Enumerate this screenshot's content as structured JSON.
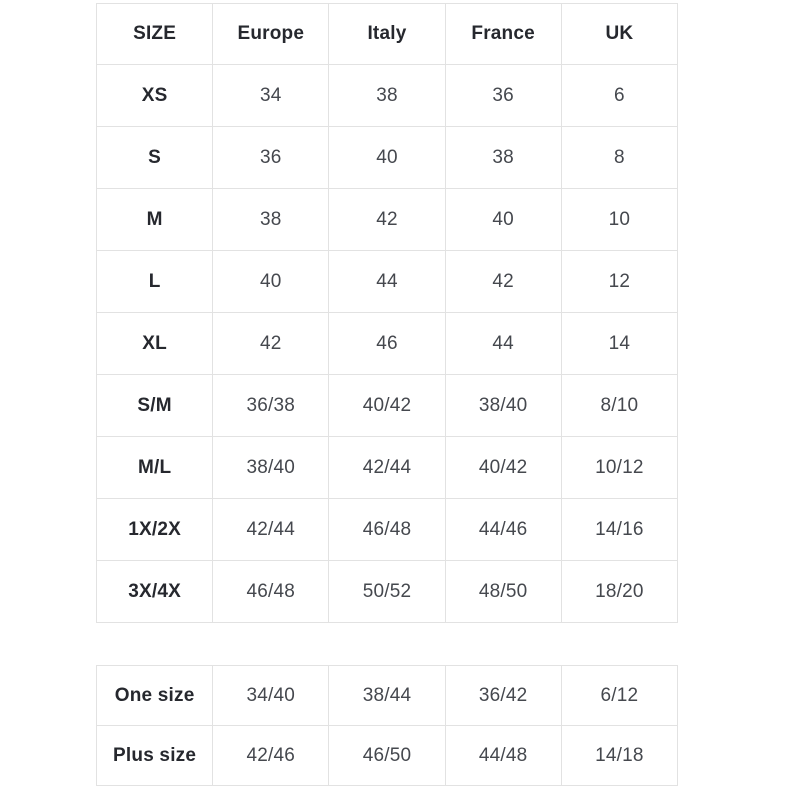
{
  "page": {
    "background_color": "#ffffff"
  },
  "colors": {
    "table_border": "#e2e2e2",
    "header_text": "#26282e",
    "label_text": "#26282e",
    "value_text": "#45484e"
  },
  "size_chart": {
    "columns": [
      "SIZE",
      "Europe",
      "Italy",
      "France",
      "UK"
    ],
    "rows": [
      {
        "size": "XS",
        "values": [
          "34",
          "38",
          "36",
          "6"
        ]
      },
      {
        "size": "S",
        "values": [
          "36",
          "40",
          "38",
          "8"
        ]
      },
      {
        "size": "M",
        "values": [
          "38",
          "42",
          "40",
          "10"
        ]
      },
      {
        "size": "L",
        "values": [
          "40",
          "44",
          "42",
          "12"
        ]
      },
      {
        "size": "XL",
        "values": [
          "42",
          "46",
          "44",
          "14"
        ]
      },
      {
        "size": "S/M",
        "values": [
          "36/38",
          "40/42",
          "38/40",
          "8/10"
        ]
      },
      {
        "size": "M/L",
        "values": [
          "38/40",
          "42/44",
          "40/42",
          "10/12"
        ]
      },
      {
        "size": "1X/2X",
        "values": [
          "42/44",
          "46/48",
          "44/46",
          "14/16"
        ]
      },
      {
        "size": "3X/4X",
        "values": [
          "46/48",
          "50/52",
          "48/50",
          "18/20"
        ]
      }
    ]
  },
  "special_sizes": {
    "rows": [
      {
        "size": "One size",
        "values": [
          "34/40",
          "38/44",
          "36/42",
          "6/12"
        ]
      },
      {
        "size": "Plus size",
        "values": [
          "42/46",
          "46/50",
          "44/48",
          "14/18"
        ]
      }
    ]
  }
}
